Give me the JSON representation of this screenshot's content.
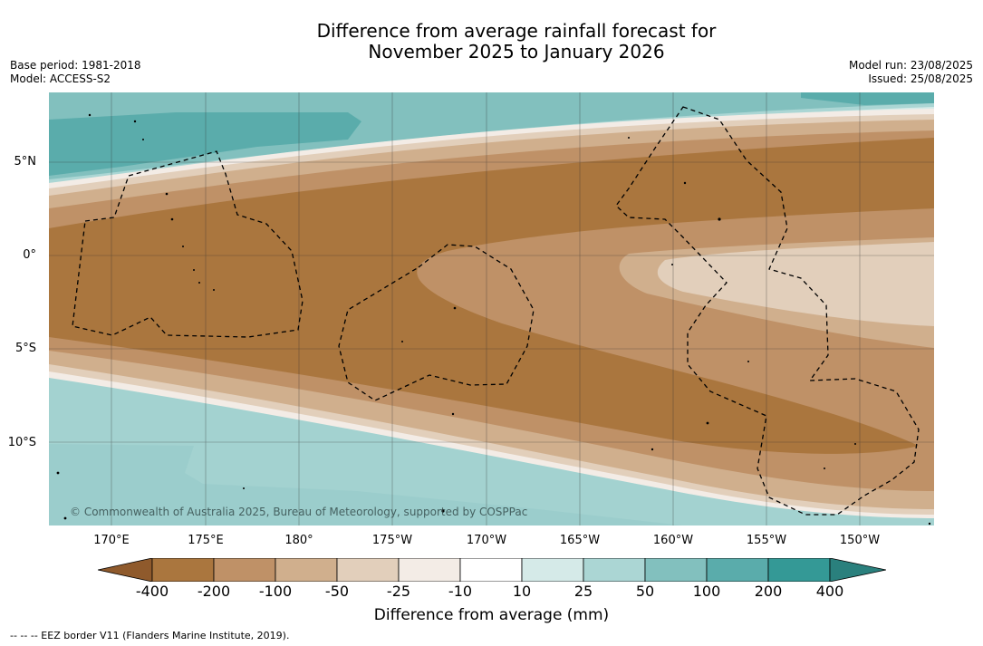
{
  "title_line1": "Difference from average rainfall forecast for",
  "title_line2": "November 2025 to January 2026",
  "base_period": "Base period: 1981-2018",
  "model": "Model: ACCESS-S2",
  "model_run": "Model run: 23/08/2025",
  "issued": "Issued: 25/08/2025",
  "copyright": "© Commonwealth of Australia 2025, Bureau of Meteorology, supported by COSPPac",
  "footnote": "--  --  -- EEZ border V11 (Flanders Marine Institute, 2019).",
  "lat_ticks": [
    "5°N",
    "0°",
    "5°S",
    "10°S"
  ],
  "lon_ticks": [
    "170°E",
    "175°E",
    "180°",
    "175°W",
    "170°W",
    "165°W",
    "160°W",
    "155°W",
    "150°W"
  ],
  "colorbar": {
    "title": "Difference from average (mm)",
    "labels": [
      "-400",
      "-200",
      "-100",
      "-50",
      "-25",
      "-10",
      "10",
      "25",
      "50",
      "100",
      "200",
      "400"
    ],
    "colors": [
      "#8f5a2c",
      "#aa763e",
      "#bf9167",
      "#d0af8d",
      "#e2cfbb",
      "#f3ece6",
      "#ffffff",
      "#d5eae8",
      "#abd6d4",
      "#82c0be",
      "#5aacab",
      "#349996",
      "#2a807d"
    ]
  },
  "map_colors": {
    "dry_400": "#aa763e",
    "dry_200": "#bf9167",
    "dry_100": "#d0af8d",
    "dry_50": "#e2cfbb",
    "dry_25": "#f3ece6",
    "neutral": "#ffffff",
    "wet_25": "#d5eae8",
    "wet_50": "#abd6d4",
    "wet_100": "#82c0be",
    "wet_200": "#5aacab",
    "wet_400": "#349996"
  }
}
